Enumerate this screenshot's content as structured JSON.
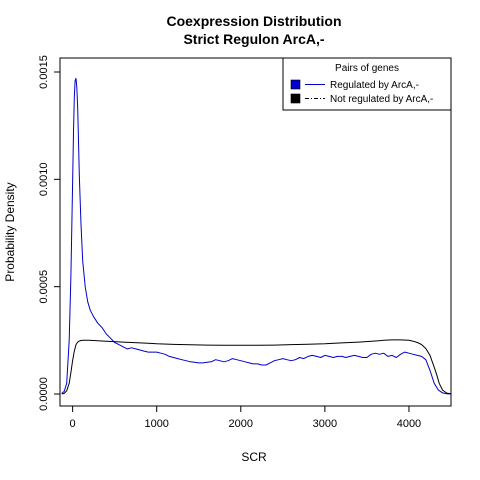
{
  "chart_data": {
    "type": "line",
    "title": "Coexpression Distribution",
    "subtitle": "Strict Regulon ArcA,-",
    "xlabel": "SCR",
    "ylabel": "Probability Density",
    "xlim": [
      -150,
      4500
    ],
    "ylim": [
      -3e-05,
      0.0015
    ],
    "x_ticks": [
      0,
      1000,
      2000,
      3000,
      4000
    ],
    "x_tick_labels": [
      "0",
      "1000",
      "2000",
      "3000",
      "4000"
    ],
    "y_ticks": [
      0,
      0.0005,
      0.001,
      0.0015
    ],
    "y_tick_labels": [
      "0.0000",
      "0.0005",
      "0.0010",
      "0.0015"
    ],
    "grid": false,
    "legend": {
      "title": "Pairs of genes",
      "position": "top-right",
      "entries": [
        {
          "label": "Regulated by  ArcA,-",
          "color": "#0000cc",
          "line": "solid"
        },
        {
          "label": "Not regulated by  ArcA,-",
          "color": "#000000",
          "line": "dotdash"
        }
      ]
    },
    "series": [
      {
        "name": "Regulated by  ArcA,-",
        "color": "#0000cc",
        "x": [
          -130,
          -100,
          -70,
          -40,
          -20,
          0,
          10,
          20,
          30,
          40,
          50,
          60,
          70,
          80,
          100,
          120,
          150,
          180,
          210,
          250,
          300,
          350,
          400,
          450,
          500,
          550,
          600,
          650,
          700,
          750,
          800,
          850,
          900,
          950,
          1000,
          1050,
          1100,
          1150,
          1200,
          1250,
          1300,
          1350,
          1400,
          1450,
          1500,
          1550,
          1600,
          1650,
          1700,
          1750,
          1800,
          1850,
          1900,
          1950,
          2000,
          2050,
          2100,
          2150,
          2200,
          2250,
          2300,
          2350,
          2400,
          2450,
          2500,
          2550,
          2600,
          2650,
          2700,
          2750,
          2800,
          2850,
          2900,
          2950,
          3000,
          3050,
          3100,
          3150,
          3200,
          3250,
          3300,
          3350,
          3400,
          3450,
          3500,
          3550,
          3600,
          3650,
          3700,
          3750,
          3800,
          3850,
          3900,
          3950,
          4000,
          4050,
          4100,
          4150,
          4200,
          4250,
          4300,
          4350,
          4400,
          4450,
          4500
        ],
        "y": [
          3e-06,
          1.2e-05,
          5e-05,
          0.00025,
          0.00055,
          0.00098,
          0.00122,
          0.00138,
          0.00146,
          0.00147,
          0.00143,
          0.00133,
          0.00118,
          0.00102,
          0.00079,
          0.00062,
          0.0005,
          0.00043,
          0.00039,
          0.00036,
          0.00033,
          0.00031,
          0.00028,
          0.00026,
          0.00024,
          0.00023,
          0.00022,
          0.00021,
          0.000215,
          0.00021,
          0.000205,
          0.0002,
          0.000195,
          0.000195,
          0.000195,
          0.00019,
          0.000185,
          0.000175,
          0.00017,
          0.000165,
          0.00016,
          0.000155,
          0.00015,
          0.000148,
          0.000145,
          0.000145,
          0.000148,
          0.00015,
          0.00016,
          0.000155,
          0.00015,
          0.000155,
          0.000165,
          0.00016,
          0.000155,
          0.00015,
          0.000145,
          0.00014,
          0.00014,
          0.000135,
          0.000135,
          0.000145,
          0.000155,
          0.00016,
          0.000165,
          0.00016,
          0.000155,
          0.00016,
          0.00017,
          0.000165,
          0.000175,
          0.00018,
          0.000175,
          0.00017,
          0.00018,
          0.000175,
          0.00017,
          0.000175,
          0.000175,
          0.00017,
          0.000175,
          0.00018,
          0.000175,
          0.00017,
          0.00017,
          0.000185,
          0.00019,
          0.000185,
          0.00019,
          0.000175,
          0.00018,
          0.00017,
          0.000185,
          0.000195,
          0.00019,
          0.000185,
          0.00018,
          0.000175,
          0.00016,
          0.00011,
          5e-05,
          1.8e-05,
          5e-06,
          1e-06,
          0.0
        ]
      },
      {
        "name": "Not regulated by  ArcA,-",
        "color": "#000000",
        "x": [
          -130,
          -100,
          -70,
          -40,
          -20,
          0,
          20,
          40,
          60,
          80,
          100,
          130,
          160,
          200,
          250,
          300,
          350,
          400,
          500,
          600,
          700,
          800,
          900,
          1000,
          1200,
          1400,
          1600,
          1800,
          2000,
          2200,
          2400,
          2600,
          2800,
          3000,
          3200,
          3400,
          3600,
          3700,
          3800,
          3900,
          4000,
          4050,
          4100,
          4150,
          4200,
          4250,
          4300,
          4330,
          4360,
          4400,
          4450,
          4500
        ],
        "y": [
          5e-07,
          3e-06,
          1.5e-05,
          5e-05,
          0.0001,
          0.000155,
          0.0002,
          0.00023,
          0.000242,
          0.000247,
          0.000249,
          0.00025,
          0.00025,
          0.00025,
          0.000249,
          0.000248,
          0.000247,
          0.000246,
          0.000244,
          0.000242,
          0.00024,
          0.000238,
          0.000236,
          0.000234,
          0.000231,
          0.000229,
          0.000228,
          0.000227,
          0.000227,
          0.000227,
          0.000228,
          0.00023,
          0.000232,
          0.000234,
          0.000238,
          0.000242,
          0.000247,
          0.00025,
          0.000252,
          0.000252,
          0.00025,
          0.000246,
          0.00024,
          0.00023,
          0.000212,
          0.00018,
          0.000125,
          9e-05,
          5e-05,
          1.8e-05,
          4e-06,
          1e-06
        ]
      }
    ]
  }
}
